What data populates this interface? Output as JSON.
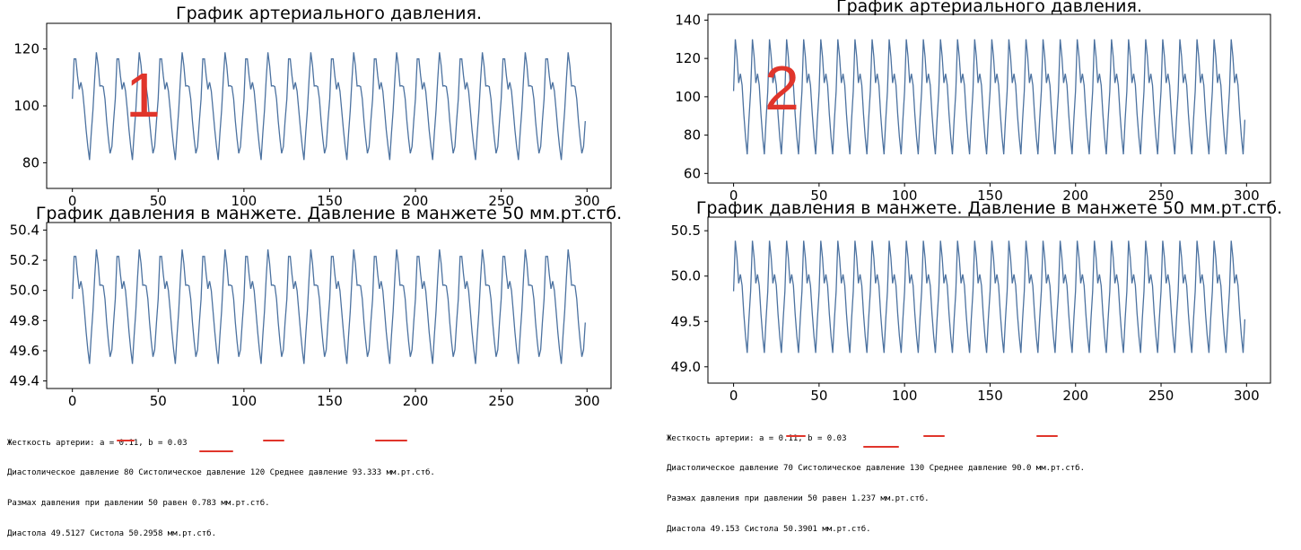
{
  "chart_data": [
    {
      "id": "c1",
      "type": "line",
      "title": "График артериального давления.",
      "xlim": [
        -15,
        314
      ],
      "ylim": [
        71,
        129
      ],
      "xticks": [
        0,
        50,
        100,
        150,
        200,
        250,
        300
      ],
      "yticks": [
        80,
        100,
        120
      ],
      "periods": 24,
      "series_min": 81,
      "series_max": 120,
      "grid": false,
      "annotation": "1"
    },
    {
      "id": "c2",
      "type": "line",
      "title": "График давления в манжете. Давление в манжете 50 мм.рт.стб.",
      "xlim": [
        -15,
        314
      ],
      "ylim": [
        49.35,
        50.45
      ],
      "xticks": [
        0,
        50,
        100,
        150,
        200,
        250,
        300
      ],
      "yticks": [
        49.4,
        49.6,
        49.8,
        50.0,
        50.2,
        50.4
      ],
      "ytick_labels": [
        "49.4",
        "49.6",
        "49.8",
        "50.0",
        "50.2",
        "50.4"
      ],
      "periods": 24,
      "series_min": 49.5127,
      "series_max": 50.2958,
      "grid": false
    },
    {
      "id": "c3",
      "type": "line",
      "title": "График артериального давления.",
      "xlim": [
        -15,
        314
      ],
      "ylim": [
        55,
        143
      ],
      "xticks": [
        0,
        50,
        100,
        150,
        200,
        250,
        300
      ],
      "yticks": [
        60,
        80,
        100,
        120,
        140
      ],
      "periods": 30,
      "series_min": 70,
      "series_max": 130,
      "grid": false,
      "annotation": "2"
    },
    {
      "id": "c4",
      "type": "line",
      "title": "График давления в манжете. Давление в манжете 50 мм.рт.стб.",
      "xlim": [
        -15,
        314
      ],
      "ylim": [
        48.82,
        50.65
      ],
      "xticks": [
        0,
        50,
        100,
        150,
        200,
        250,
        300
      ],
      "yticks": [
        49.0,
        49.5,
        50.0,
        50.5
      ],
      "ytick_labels": [
        "49.0",
        "49.5",
        "50.0",
        "50.5"
      ],
      "periods": 30,
      "series_min": 49.153,
      "series_max": 50.3901,
      "grid": false
    }
  ],
  "output_left": {
    "line1": "Жесткость артерии: a = 0.11, b = 0.03",
    "line2": "Диастолическое давление 80 Систолическое давление 120 Среднее давление 93.333 мм.рт.стб.",
    "line3": "Размах давления при давлении 50 равен 0.783 мм.рт.стб.",
    "line4": "Диастола 49.5127 Систола 50.2958 мм.рт.стб."
  },
  "output_right": {
    "line1": "Жесткость артерии: a = 0.11, b = 0.03",
    "line2": "Диастолическое давление 70 Систолическое давление 130 Среднее давление 90.0 мм.рт.стб.",
    "line3": "Размах давления при давлении 50 равен 1.237 мм.рт.стб.",
    "line4": "Диастола 49.153 Систола 50.3901 мм.рт.стб."
  },
  "colors": {
    "series": "#4c72a0",
    "annotation": "#e0352b",
    "underline": "#e0352b"
  }
}
